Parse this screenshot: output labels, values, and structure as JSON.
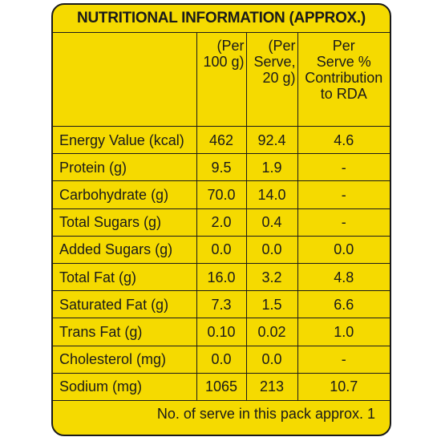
{
  "title": "NUTRITIONAL INFORMATION (APPROX.)",
  "headers": {
    "per100g_line1": "(Per",
    "per100g_line2": "100 g)",
    "perServe_line1": "(Per",
    "perServe_line2": "Serve,",
    "perServe_line3": "20 g)",
    "rda_line1": "Per",
    "rda_line2": "Serve %",
    "rda_line3": "Contribution",
    "rda_line4": "to RDA"
  },
  "rows": [
    {
      "label": "Energy Value (kcal)",
      "per100g": "462",
      "perServe": "92.4",
      "rda": "4.6"
    },
    {
      "label": "Protein (g)",
      "per100g": "9.5",
      "perServe": "1.9",
      "rda": "-"
    },
    {
      "label": "Carbohydrate (g)",
      "per100g": "70.0",
      "perServe": "14.0",
      "rda": "-"
    },
    {
      "label": "Total Sugars (g)",
      "per100g": "2.0",
      "perServe": "0.4",
      "rda": "-"
    },
    {
      "label": "Added Sugars (g)",
      "per100g": "0.0",
      "perServe": "0.0",
      "rda": "0.0"
    },
    {
      "label": "Total Fat (g)",
      "per100g": "16.0",
      "perServe": "3.2",
      "rda": "4.8"
    },
    {
      "label": "Saturated Fat (g)",
      "per100g": "7.3",
      "perServe": "1.5",
      "rda": "6.6"
    },
    {
      "label": "Trans Fat (g)",
      "per100g": "0.10",
      "perServe": "0.02",
      "rda": "1.0"
    },
    {
      "label": "Cholesterol (mg)",
      "per100g": "0.0",
      "perServe": "0.0",
      "rda": "-"
    },
    {
      "label": "Sodium (mg)",
      "per100g": "1065",
      "perServe": "213",
      "rda": "10.7"
    }
  ],
  "footer": "No. of serve in this pack approx. 1",
  "colors": {
    "background": "#f5da00",
    "ink": "#1a1a1a"
  }
}
